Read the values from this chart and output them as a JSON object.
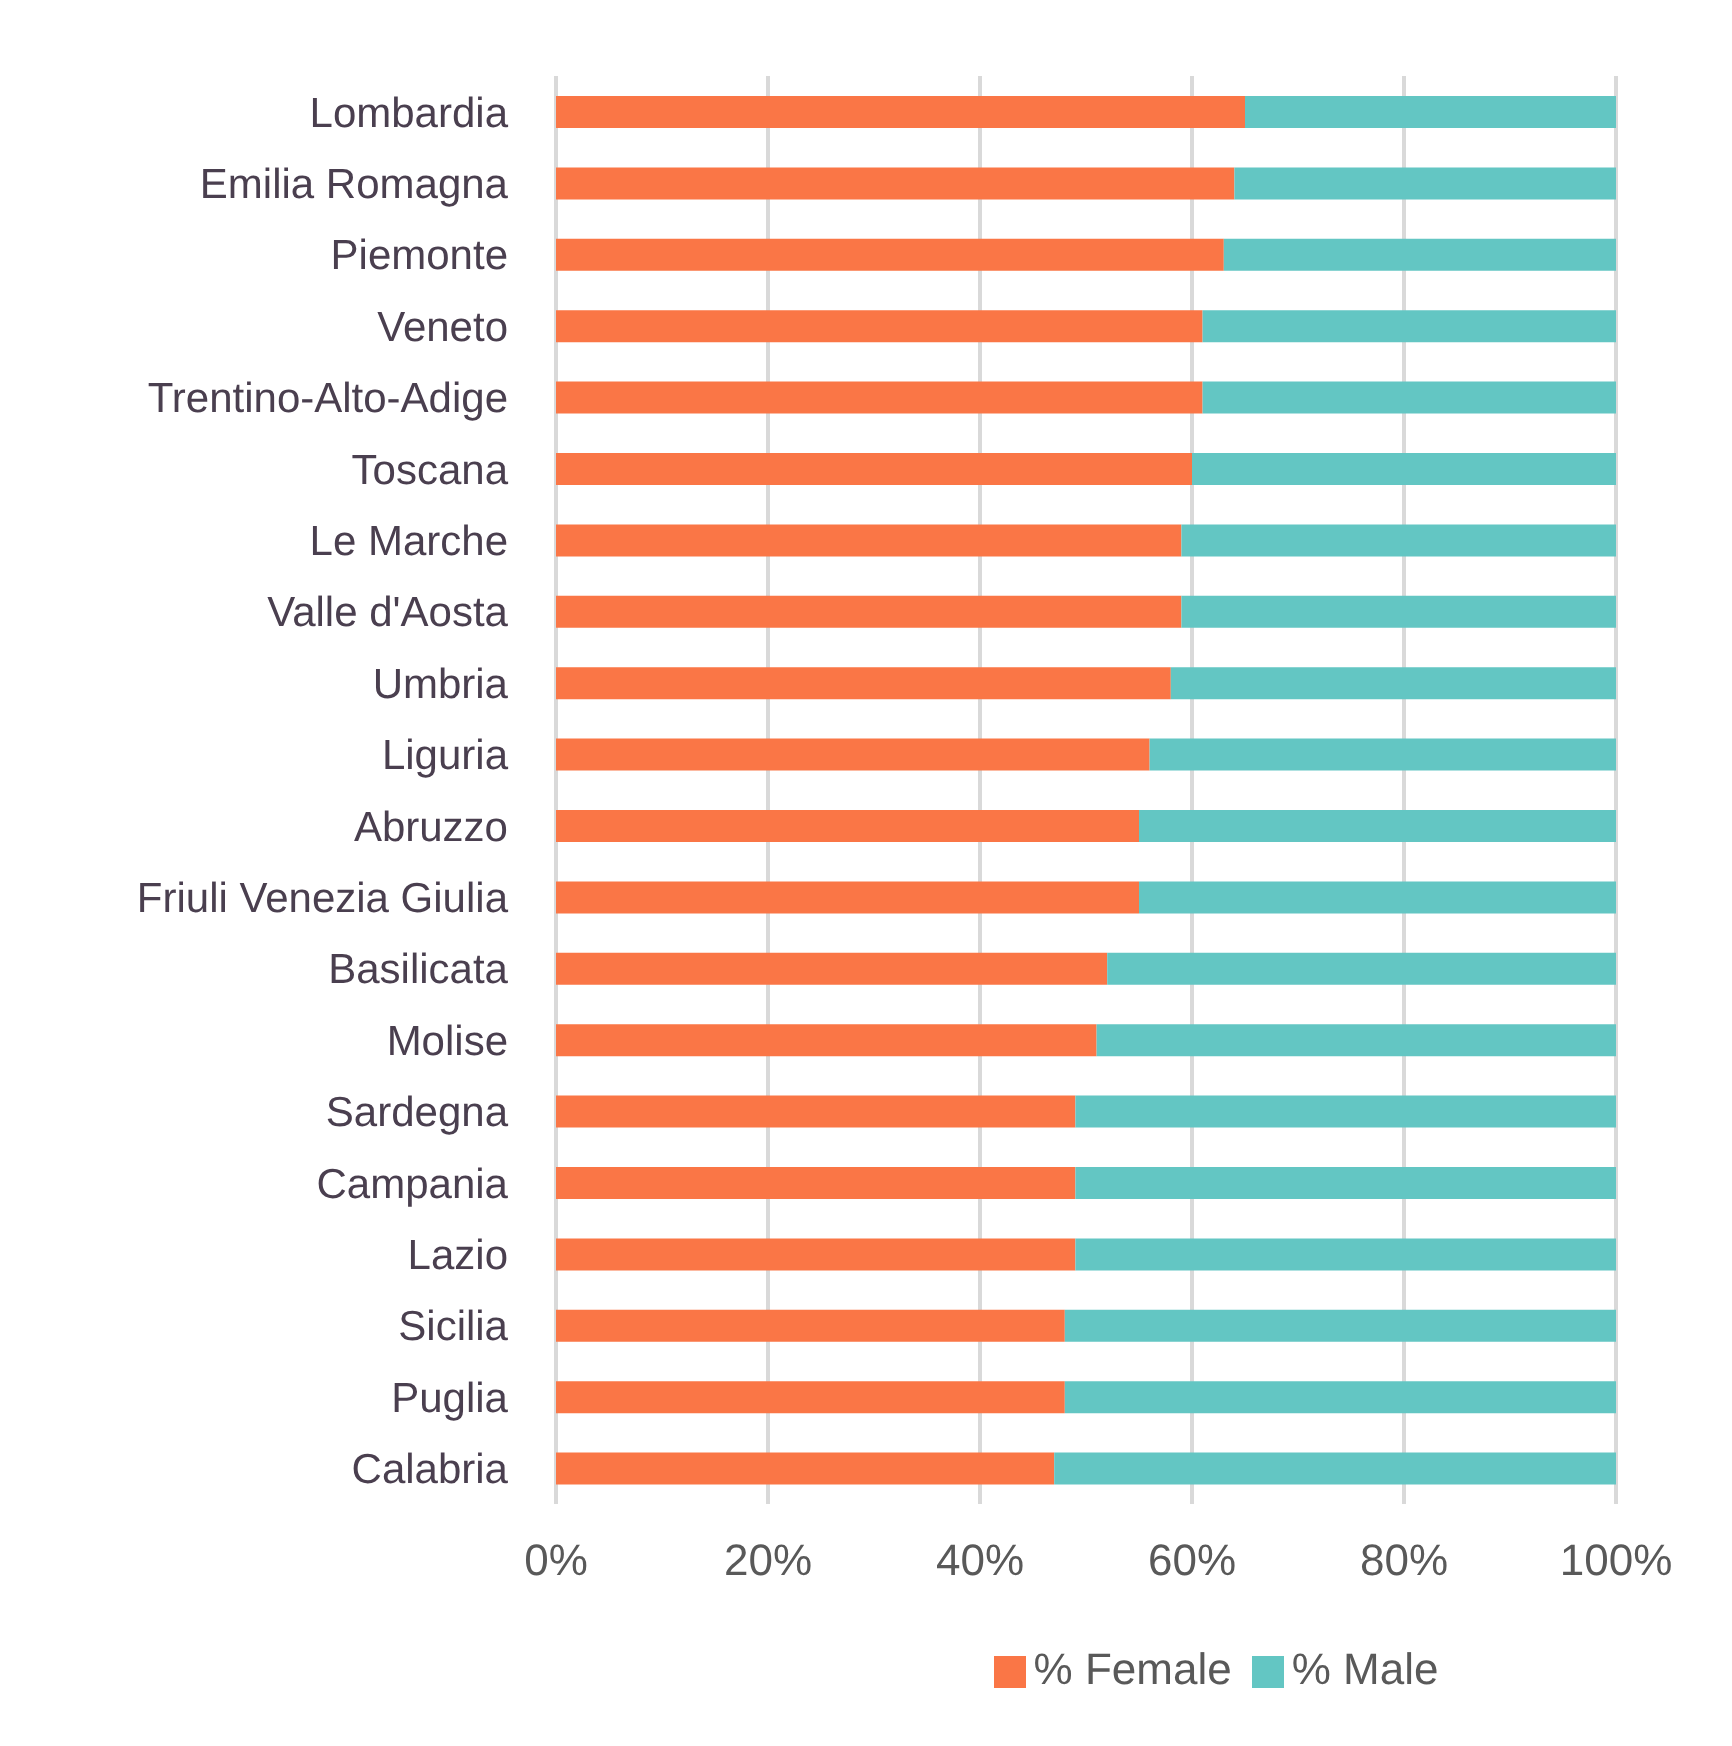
{
  "chart_data": {
    "type": "bar",
    "orientation": "horizontal",
    "stacked": true,
    "categories": [
      "Lombardia",
      "Emilia Romagna",
      "Piemonte",
      "Veneto",
      "Trentino-Alto-Adige",
      "Toscana",
      "Le Marche",
      "Valle d'Aosta",
      "Umbria",
      "Liguria",
      "Abruzzo",
      "Friuli Venezia Giulia",
      "Basilicata",
      "Molise",
      "Sardegna",
      "Campania",
      "Lazio",
      "Sicilia",
      "Puglia",
      "Calabria"
    ],
    "series": [
      {
        "name": "% Female",
        "color": "#fa7646",
        "values": [
          65,
          64,
          63,
          61,
          61,
          60,
          59,
          59,
          58,
          56,
          55,
          55,
          52,
          51,
          49,
          49,
          49,
          48,
          48,
          47
        ]
      },
      {
        "name": "% Male",
        "color": "#63c6c3",
        "values": [
          35,
          36,
          37,
          39,
          39,
          40,
          41,
          41,
          42,
          44,
          45,
          45,
          48,
          49,
          51,
          51,
          51,
          52,
          52,
          53
        ]
      }
    ],
    "xlim": [
      0,
      100
    ],
    "xticks": [
      {
        "value": 0,
        "label": "0%"
      },
      {
        "value": 20,
        "label": "20%"
      },
      {
        "value": 40,
        "label": "40%"
      },
      {
        "value": 60,
        "label": "60%"
      },
      {
        "value": 80,
        "label": "80%"
      },
      {
        "value": 100,
        "label": "100%"
      }
    ],
    "grid": "x",
    "legend": "bottom"
  }
}
